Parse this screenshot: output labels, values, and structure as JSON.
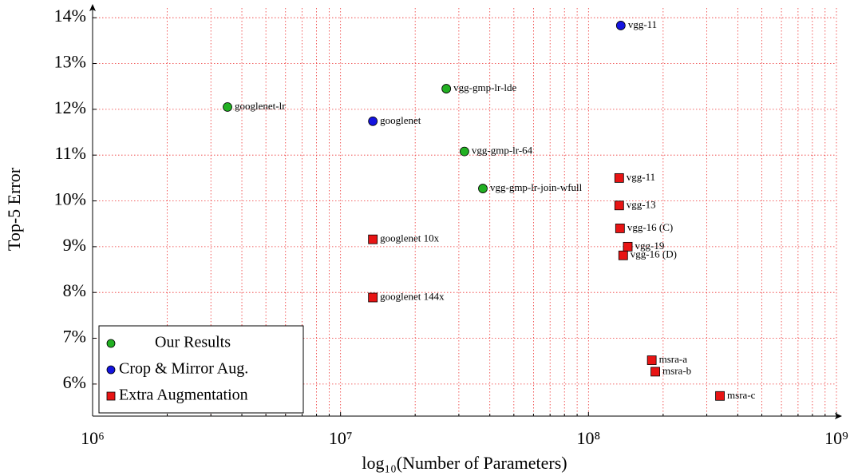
{
  "chart_data": {
    "type": "scatter",
    "xlabel": "log₁₀(Number of Parameters)",
    "ylabel": "Top-5 Error",
    "xscale": "log",
    "xlim": [
      1000000,
      1000000000
    ],
    "ylim": [
      5.3,
      14.3
    ],
    "xticks": [
      {
        "value": 1000000,
        "label": "10⁶"
      },
      {
        "value": 10000000,
        "label": "10⁷"
      },
      {
        "value": 100000000,
        "label": "10⁸"
      },
      {
        "value": 1000000000,
        "label": "10⁹"
      }
    ],
    "xminorticks": [
      2000000,
      3000000,
      4000000,
      5000000,
      6000000,
      7000000,
      8000000,
      9000000,
      20000000,
      30000000,
      40000000,
      50000000,
      60000000,
      70000000,
      80000000,
      90000000,
      200000000,
      300000000,
      400000000,
      500000000,
      600000000,
      700000000,
      800000000,
      900000000
    ],
    "yticks": [
      {
        "value": 6,
        "label": "6%"
      },
      {
        "value": 7,
        "label": "7%"
      },
      {
        "value": 8,
        "label": "8%"
      },
      {
        "value": 9,
        "label": "9%"
      },
      {
        "value": 10,
        "label": "10%"
      },
      {
        "value": 11,
        "label": "11%"
      },
      {
        "value": 12,
        "label": "12%"
      },
      {
        "value": 13,
        "label": "13%"
      },
      {
        "value": 14,
        "label": "14%"
      }
    ],
    "grid": true,
    "legend": "lower left",
    "series": [
      {
        "name": "Our Results",
        "color": "#22b022",
        "marker": "circle",
        "labels": [
          "googlenet-lr",
          "vgg-gmp-lr-lde",
          "vgg-gmp-lr-64",
          "vgg-gmp-lr-join-wfull"
        ],
        "x": [
          3500000,
          26700000,
          31600000,
          37500000
        ],
        "values": [
          12.05,
          12.45,
          11.08,
          10.27
        ]
      },
      {
        "name": "Crop & Mirror Aug.",
        "color": "#1414e0",
        "marker": "circle",
        "labels": [
          "vgg-11",
          "googlenet"
        ],
        "x": [
          135000000,
          13500000
        ],
        "values": [
          13.83,
          11.74
        ]
      },
      {
        "name": "Extra Augmentation",
        "color": "#e81414",
        "marker": "square",
        "labels": [
          "vgg-11",
          "vgg-13",
          "vgg-16 (C)",
          "vgg-19",
          "vgg-16 (D)",
          "googlenet 10x",
          "googlenet 144x",
          "msra-a",
          "msra-b",
          "msra-c"
        ],
        "x": [
          133000000,
          133000000,
          134000000,
          144000000,
          138000000,
          13500000,
          13500000,
          180000000,
          186000000,
          339000000
        ],
        "values": [
          10.5,
          9.9,
          9.4,
          9.0,
          8.81,
          9.16,
          7.89,
          6.52,
          6.27,
          5.74
        ]
      }
    ]
  }
}
